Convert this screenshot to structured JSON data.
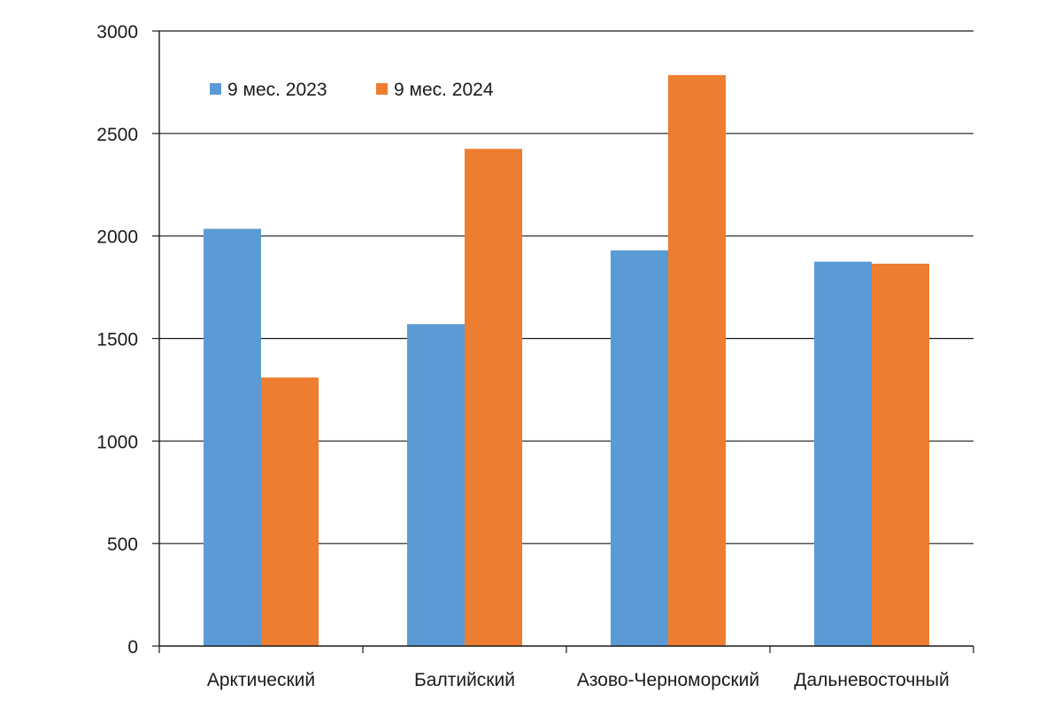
{
  "chart_data": {
    "type": "bar",
    "categories": [
      "Арктический",
      "Балтийский",
      "Азово-Черноморский",
      "Дальневосточный"
    ],
    "series": [
      {
        "name": "9 мес. 2023",
        "values": [
          2035,
          1570,
          1930,
          1875
        ],
        "color": "#5b9bd5"
      },
      {
        "name": "9 мес. 2024",
        "values": [
          1310,
          2425,
          2785,
          1865
        ],
        "color": "#ed7d31"
      }
    ],
    "ylim": [
      0,
      3000
    ],
    "yticks": [
      0,
      500,
      1000,
      1500,
      2000,
      2500,
      3000
    ],
    "grid": true,
    "legend_position": "top-left"
  }
}
